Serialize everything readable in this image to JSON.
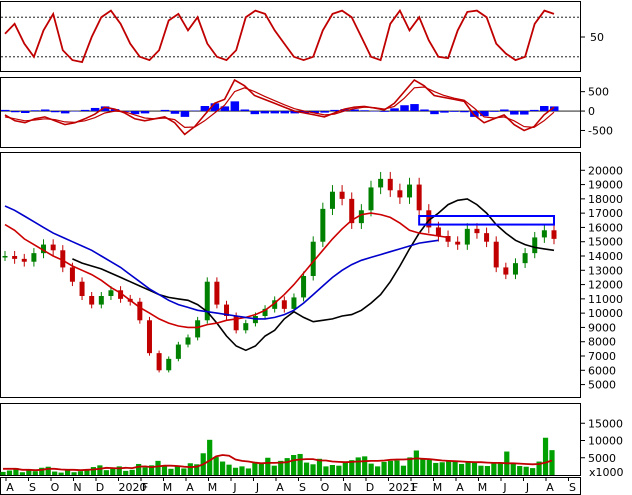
{
  "chart_data": [
    {
      "type": "line",
      "panel": "stochastic-oscillator",
      "ylim": [
        0,
        100
      ],
      "ytick_labels": [
        "50"
      ],
      "reference_lines": [
        80,
        20
      ],
      "series": [
        {
          "color": "#c00000",
          "values": [
            55,
            70,
            40,
            20,
            60,
            85,
            30,
            15,
            12,
            50,
            80,
            90,
            70,
            40,
            20,
            15,
            30,
            75,
            85,
            60,
            80,
            40,
            20,
            15,
            30,
            80,
            90,
            85,
            60,
            40,
            20,
            15,
            20,
            60,
            85,
            90,
            80,
            50,
            20,
            15,
            70,
            90,
            60,
            80,
            45,
            20,
            18,
            60,
            88,
            90,
            80,
            40,
            25,
            15,
            20,
            70,
            90,
            85
          ]
        }
      ]
    },
    {
      "type": "line",
      "panel": "macd",
      "ylim": [
        -900,
        800
      ],
      "yticks": [
        500,
        0,
        -500
      ],
      "ytick_labels": [
        "500",
        "0",
        "-500"
      ],
      "series": [
        {
          "color": "#c00000",
          "values": [
            -100,
            -250,
            -300,
            -200,
            -150,
            -250,
            -350,
            -300,
            -200,
            -80,
            100,
            50,
            -50,
            -200,
            -250,
            -200,
            -150,
            -300,
            -600,
            -400,
            -100,
            200,
            300,
            800,
            650,
            400,
            300,
            200,
            100,
            0,
            -50,
            -100,
            -150,
            -50,
            50,
            100,
            120,
            80,
            30,
            200,
            500,
            800,
            650,
            400,
            350,
            300,
            250,
            -100,
            -300,
            -200,
            -100,
            -350,
            -500,
            -400,
            -100,
            100
          ]
        },
        {
          "color": "#c00000",
          "values": [
            -150,
            -200,
            -250,
            -230,
            -200,
            -220,
            -280,
            -290,
            -250,
            -170,
            -50,
            0,
            -20,
            -100,
            -180,
            -200,
            -180,
            -220,
            -420,
            -410,
            -250,
            -50,
            150,
            500,
            600,
            500,
            380,
            270,
            160,
            60,
            0,
            -50,
            -100,
            -80,
            0,
            60,
            100,
            90,
            50,
            120,
            330,
            600,
            620,
            500,
            400,
            330,
            280,
            80,
            -150,
            -180,
            -150,
            -250,
            -400,
            -420,
            -250,
            -30
          ]
        },
        {
          "color": "#0000ff",
          "kind": "histogram",
          "values": [
            30,
            -30,
            -50,
            20,
            40,
            -30,
            -60,
            -10,
            30,
            80,
            120,
            50,
            -20,
            -80,
            -60,
            0,
            30,
            -70,
            -150,
            10,
            130,
            200,
            120,
            250,
            40,
            -80,
            -60,
            -60,
            -60,
            -60,
            -50,
            -50,
            -40,
            30,
            50,
            40,
            20,
            -10,
            -20,
            70,
            150,
            180,
            40,
            -80,
            -40,
            -20,
            -30,
            -150,
            -130,
            -20,
            40,
            -90,
            -90,
            30,
            130,
            120
          ]
        }
      ]
    },
    {
      "type": "line",
      "panel": "price",
      "ylim": [
        4200,
        21000
      ],
      "yticks": [
        20000,
        19000,
        18000,
        17000,
        16000,
        15000,
        14000,
        13000,
        12000,
        11000,
        10000,
        9000,
        8000,
        7000,
        6000,
        5000
      ],
      "ytick_labels": [
        "20000",
        "19000",
        "18000",
        "17000",
        "16000",
        "15000",
        "14000",
        "13000",
        "12000",
        "11000",
        "10000",
        "9000",
        "8000",
        "7000",
        "6000",
        "5000"
      ],
      "price": [
        14000,
        13800,
        13600,
        14200,
        14800,
        14400,
        13200,
        12200,
        11200,
        10600,
        11200,
        11600,
        11000,
        10800,
        9500,
        7200,
        6000,
        6800,
        7800,
        8300,
        9500,
        12200,
        10600,
        9800,
        8800,
        9300,
        9800,
        10300,
        10900,
        10300,
        11100,
        12600,
        15000,
        17300,
        18500,
        18000,
        16300,
        17200,
        18800,
        19400,
        18600,
        18100,
        19000,
        17200,
        16000,
        15400,
        15000,
        14800,
        15900,
        15600,
        15000,
        13200,
        12700,
        13500,
        14200,
        15300,
        15800,
        15200
      ],
      "series": [
        {
          "color": "#000000",
          "values": [
            13800,
            13500,
            13300,
            13100,
            12800,
            12500,
            12200,
            11900,
            11600,
            11300,
            11100,
            11000,
            10900,
            10600,
            10100,
            9300,
            8400,
            7700,
            7400,
            7700,
            8400,
            8800,
            9600,
            10100,
            9700,
            9400,
            9500,
            9600,
            9800,
            9900,
            10200,
            10700,
            11300,
            12200,
            13300,
            14500,
            15600,
            16500,
            17000,
            17600,
            17900,
            18000,
            17600,
            17000,
            16200,
            15600,
            15100,
            14800,
            14600,
            14500,
            14400
          ],
          "start_index": 7
        },
        {
          "color": "#cc0000",
          "values": [
            16200,
            15800,
            15200,
            14800,
            14400,
            14000,
            13700,
            13300,
            13000,
            12700,
            12300,
            11800,
            11400,
            10900,
            10400,
            10000,
            9600,
            9300,
            9100,
            9000,
            9000,
            9200,
            9300,
            9500,
            9600,
            9700,
            9900,
            10200,
            10700,
            11300,
            12000,
            12800,
            13600,
            14400,
            15200,
            15900,
            16500,
            16900,
            17000,
            16900,
            16700,
            16300,
            15800,
            15600,
            15500,
            15400,
            15300
          ],
          "start_index": 0
        },
        {
          "color": "#0000cc",
          "values": [
            17500,
            17200,
            16800,
            16400,
            16000,
            15600,
            15300,
            15000,
            14700,
            14400,
            14000,
            13600,
            13200,
            12700,
            12200,
            11700,
            11300,
            10900,
            10600,
            10400,
            10200,
            10100,
            10000,
            9900,
            9800,
            9700,
            9600,
            9600,
            9700,
            9900,
            10200,
            10700,
            11300,
            11900,
            12500,
            13000,
            13400,
            13700,
            13900,
            14100,
            14300,
            14500,
            14700,
            14900,
            15000,
            15100
          ],
          "start_index": 0
        }
      ],
      "annotations": [
        {
          "kind": "box",
          "color": "#0000ff",
          "y_range": [
            16200,
            16800
          ],
          "x_index_range": [
            43,
            57
          ]
        }
      ]
    },
    {
      "type": "bar",
      "panel": "volume",
      "ylim": [
        0,
        20000
      ],
      "yticks": [
        15000,
        10000,
        5000
      ],
      "ytick_labels": [
        "15000",
        "10000",
        "5000"
      ],
      "unit_label": "x1000",
      "values": [
        900,
        1300,
        2000,
        800,
        1500,
        1100,
        2100,
        2400,
        1000,
        700,
        1400,
        800,
        1100,
        1600,
        2300,
        2800,
        1400,
        1800,
        2500,
        1200,
        1500,
        3200,
        2200,
        2800,
        4100,
        2600,
        1800,
        2700,
        1900,
        3400,
        3100,
        6300,
        10200,
        5200,
        3900,
        3000,
        2100,
        2500,
        1900,
        3800,
        3300,
        5000,
        2700,
        4100,
        4900,
        5800,
        6100,
        3600,
        3100,
        4700,
        2500,
        2900,
        2700,
        3800,
        4300,
        5100,
        5400,
        3300,
        2500,
        3800,
        4100,
        4200,
        2700,
        5100,
        7100,
        4900,
        4500,
        3500,
        3700,
        4200,
        3900,
        3200,
        4000,
        3800,
        2700,
        2600,
        3400,
        3400,
        6800,
        3400,
        2600,
        2400,
        2000,
        3900,
        10800,
        7200
      ],
      "series": [
        {
          "color": "#c00000",
          "values": [
            1800,
            1800,
            1800,
            1500,
            1500,
            1400,
            1500,
            1800,
            1800,
            1600,
            1500,
            1500,
            1400,
            1500,
            1600,
            1800,
            2100,
            2000,
            1900,
            2100,
            2000,
            2400,
            2500,
            2300,
            2500,
            2700,
            2700,
            2600,
            2400,
            2300,
            2400,
            3100,
            4200,
            5400,
            5800,
            5600,
            4500,
            4100,
            3900,
            3600,
            3400,
            3500,
            3500,
            3600,
            3700,
            4300,
            4500,
            4600,
            4600,
            4200,
            4200,
            3900,
            3800,
            3700,
            3800,
            3900,
            4000,
            4100,
            4100,
            4200,
            4400,
            4500,
            4500,
            4600,
            4800,
            4700,
            4600,
            4400,
            4200,
            4100,
            4000,
            3900,
            3800,
            3700,
            3700,
            3600,
            3500,
            3500,
            3400,
            3400,
            3300,
            3200,
            3100,
            3200,
            3600,
            4200
          ]
        }
      ]
    }
  ],
  "x_axis": {
    "tick_labels": [
      "A",
      "S",
      "O",
      "N",
      "D",
      "2020",
      "F",
      "M",
      "A",
      "M",
      "J",
      "J",
      "A",
      "S",
      "O",
      "N",
      "D",
      "2021",
      "F",
      "M",
      "A",
      "M",
      "J",
      "J",
      "A",
      "S"
    ]
  }
}
